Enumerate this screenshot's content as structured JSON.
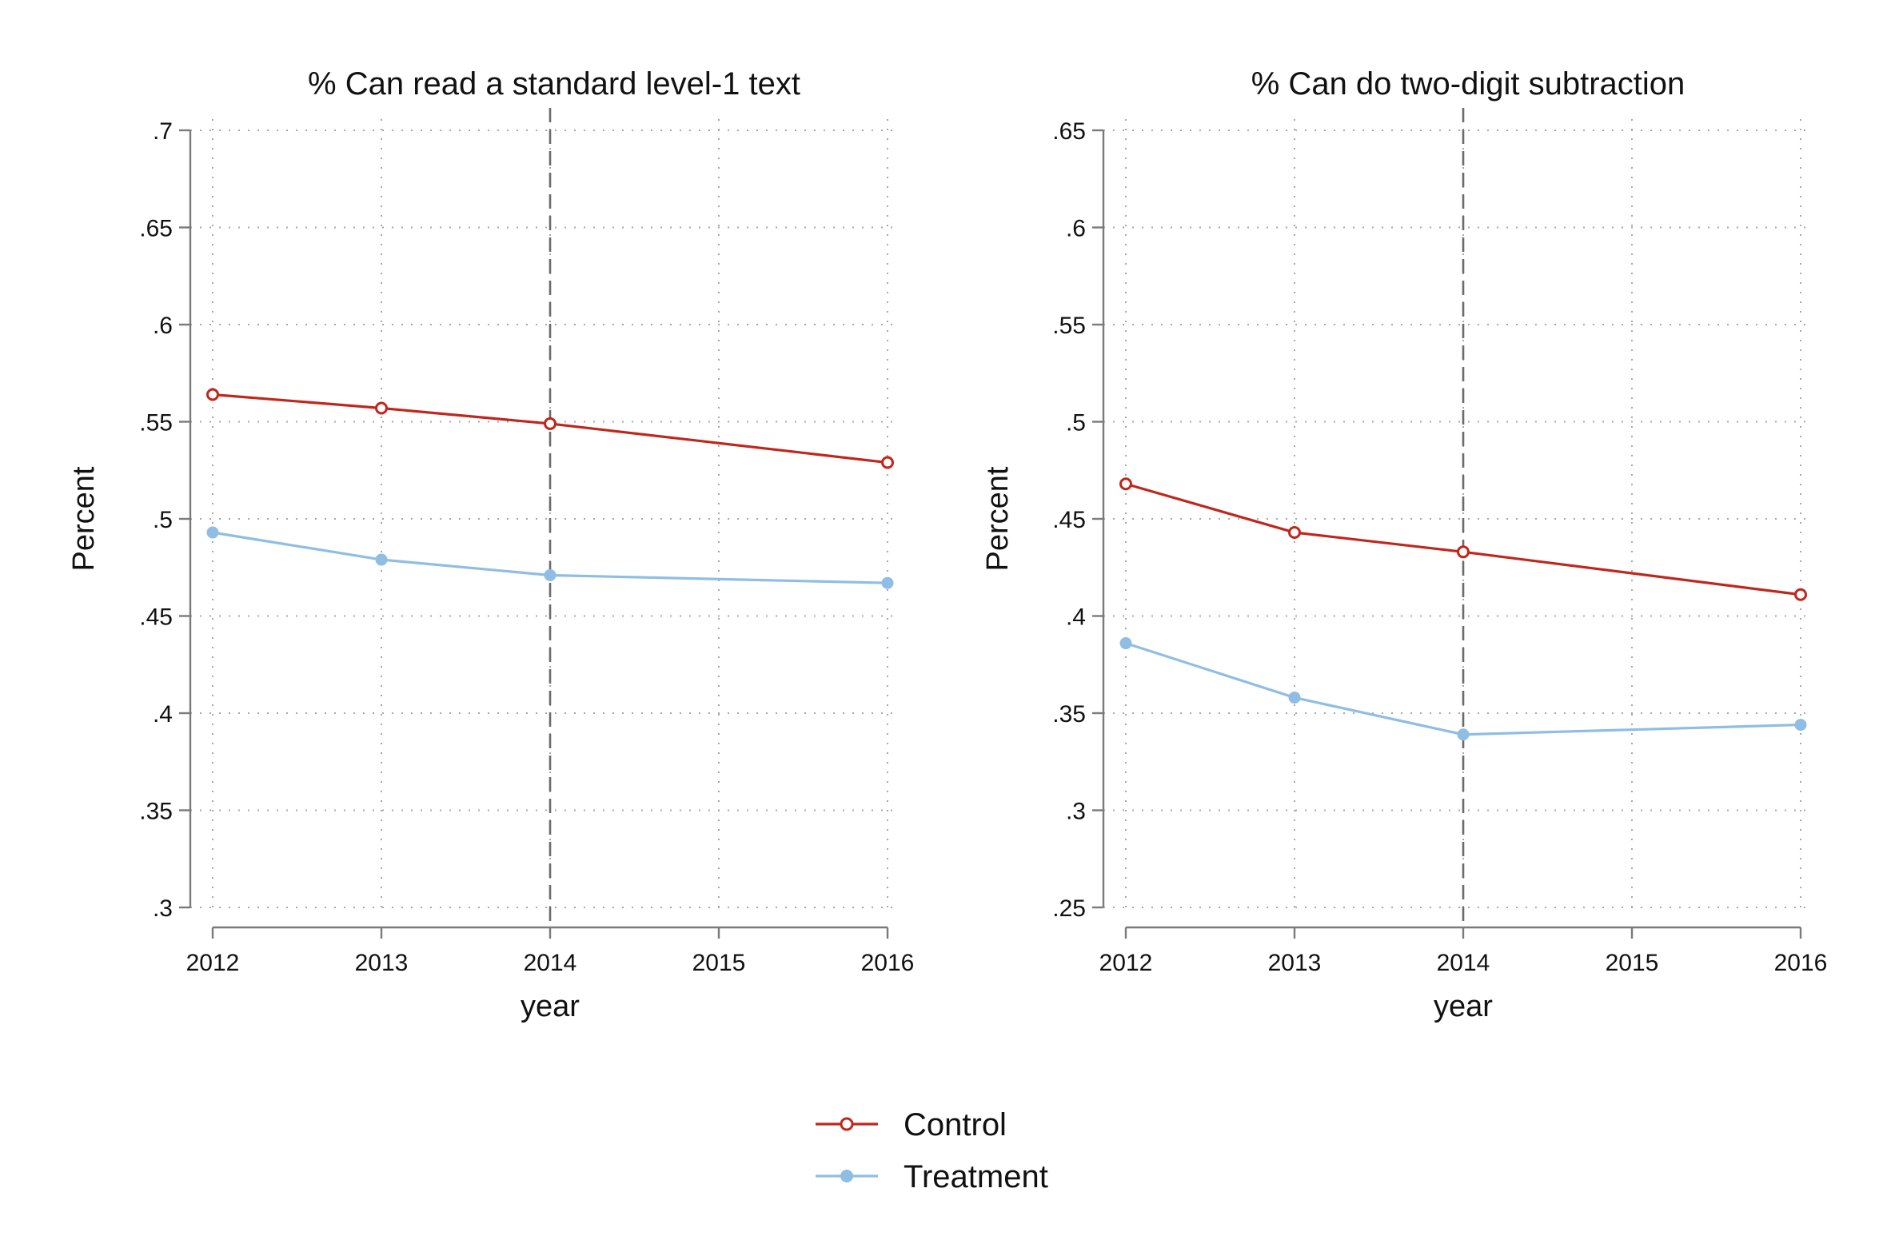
{
  "colors": {
    "control": "#c0261c",
    "treatment": "#8fbde3"
  },
  "chart_data": [
    {
      "type": "line",
      "title": "% Can read a standard level-1 text",
      "xlabel": "year",
      "ylabel": "Percent",
      "xlim": [
        2012,
        2016
      ],
      "ylim": [
        0.3,
        0.7
      ],
      "x_ticks": [
        2012,
        2013,
        2014,
        2015,
        2016
      ],
      "x_tick_labels": [
        "2012",
        "2013",
        "2014",
        "2015",
        "2016"
      ],
      "y_ticks": [
        0.3,
        0.35,
        0.4,
        0.45,
        0.5,
        0.55,
        0.6,
        0.65,
        0.7
      ],
      "y_tick_labels": [
        ".3",
        ".35",
        ".4",
        ".45",
        ".5",
        ".55",
        ".6",
        ".65",
        ".7"
      ],
      "reference_line_x": 2014,
      "grid": true,
      "x": [
        2012,
        2013,
        2014,
        2016
      ],
      "series": [
        {
          "name": "Control",
          "marker": "hollow-circle",
          "values": [
            0.564,
            0.557,
            0.549,
            0.529
          ]
        },
        {
          "name": "Treatment",
          "marker": "filled-circle",
          "values": [
            0.493,
            0.479,
            0.471,
            0.467
          ]
        }
      ]
    },
    {
      "type": "line",
      "title": "% Can do two-digit subtraction",
      "xlabel": "year",
      "ylabel": "Percent",
      "xlim": [
        2012,
        2016
      ],
      "ylim": [
        0.25,
        0.65
      ],
      "x_ticks": [
        2012,
        2013,
        2014,
        2015,
        2016
      ],
      "x_tick_labels": [
        "2012",
        "2013",
        "2014",
        "2015",
        "2016"
      ],
      "y_ticks": [
        0.25,
        0.3,
        0.35,
        0.4,
        0.45,
        0.5,
        0.55,
        0.6,
        0.65
      ],
      "y_tick_labels": [
        ".25",
        ".3",
        ".35",
        ".4",
        ".45",
        ".5",
        ".55",
        ".6",
        ".65"
      ],
      "reference_line_x": 2014,
      "grid": true,
      "x": [
        2012,
        2013,
        2014,
        2016
      ],
      "series": [
        {
          "name": "Control",
          "marker": "hollow-circle",
          "values": [
            0.468,
            0.443,
            0.433,
            0.411
          ]
        },
        {
          "name": "Treatment",
          "marker": "filled-circle",
          "values": [
            0.386,
            0.358,
            0.339,
            0.344
          ]
        }
      ]
    }
  ],
  "legend": {
    "position": "bottom-center",
    "items": [
      {
        "label": "Control",
        "series": "control"
      },
      {
        "label": "Treatment",
        "series": "treatment"
      }
    ]
  }
}
